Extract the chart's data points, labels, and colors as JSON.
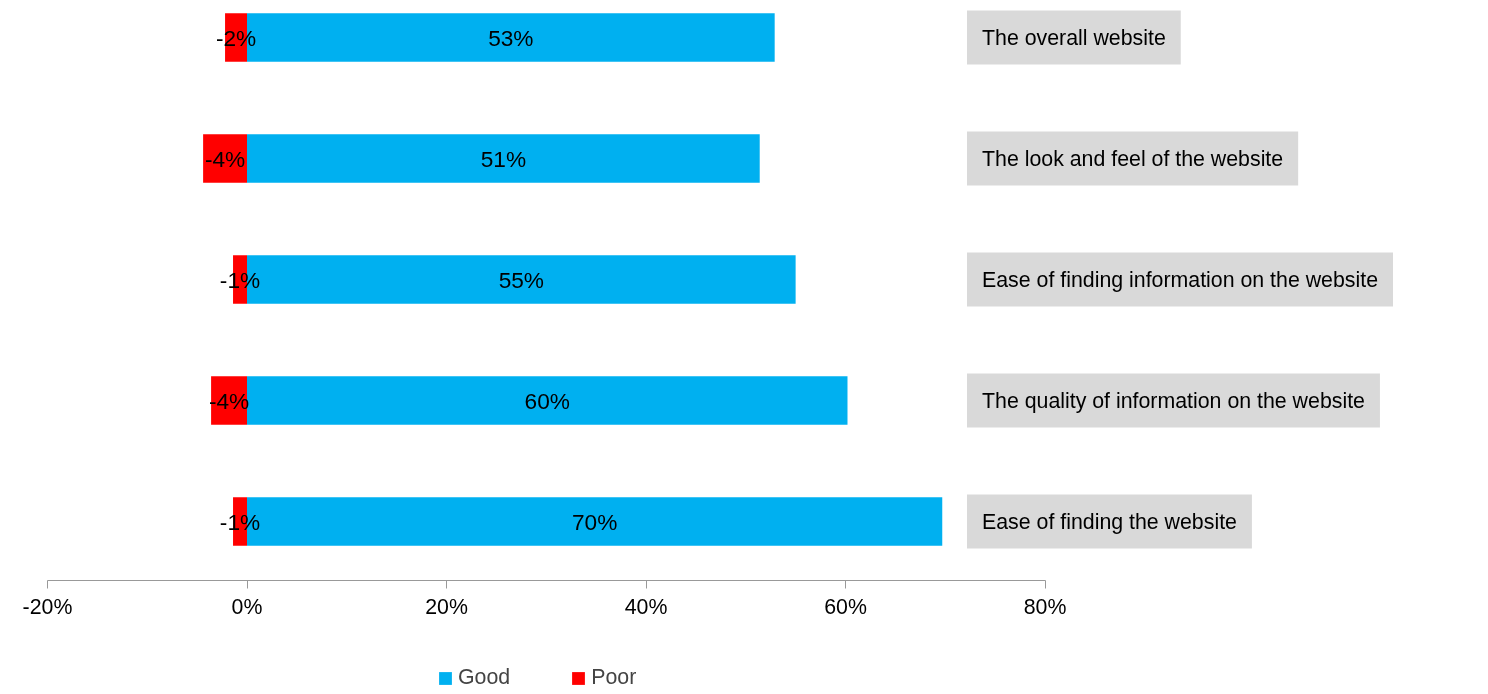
{
  "chart_data": {
    "type": "bar",
    "orientation": "horizontal",
    "stacked": true,
    "categories": [
      "The overall website",
      "The look and feel of the website",
      "Ease of finding information on the website",
      "The quality of information on the website",
      "Ease of finding the website"
    ],
    "series": [
      {
        "name": "Good",
        "color": "#00b0f0",
        "values": [
          52.9,
          51.4,
          55.0,
          60.2,
          69.7
        ],
        "value_labels": [
          "53%",
          "51%",
          "55%",
          "60%",
          "70%"
        ]
      },
      {
        "name": "Poor",
        "color": "#ff0000",
        "values": [
          -2.2,
          -4.4,
          -1.4,
          -3.6,
          -1.4
        ],
        "value_labels": [
          "-2%",
          "-4%",
          "-1%",
          "-4%",
          "-1%"
        ]
      }
    ],
    "xlim": [
      -20,
      80
    ],
    "xticks": [
      {
        "value": -20,
        "label": "-20%"
      },
      {
        "value": 0,
        "label": "0%"
      },
      {
        "value": 20,
        "label": "20%"
      },
      {
        "value": 40,
        "label": "40%"
      },
      {
        "value": 60,
        "label": "60%"
      },
      {
        "value": 80,
        "label": "80%"
      }
    ],
    "legend": "bottom",
    "grid": false
  }
}
